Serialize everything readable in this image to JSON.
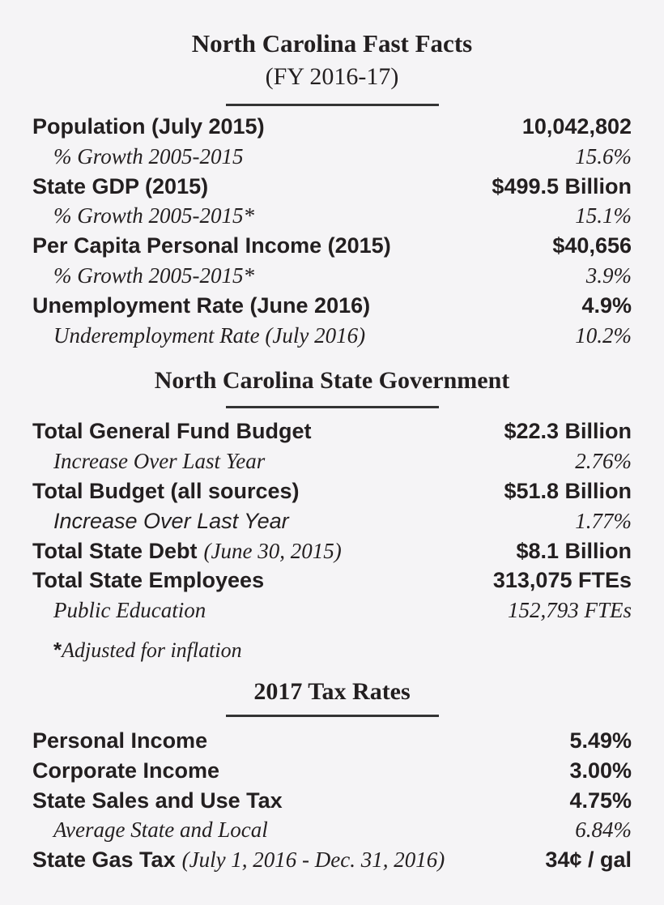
{
  "colors": {
    "background": "#f5f4f6",
    "text": "#231f20",
    "rule": "#343434"
  },
  "header": {
    "title": "North Carolina Fast Facts",
    "subtitle": "(FY 2016-17)"
  },
  "sections": [
    {
      "heading": "North Carolina Fast Facts",
      "rows": [
        {
          "label": "Population (July 2015)",
          "value": "10,042,802"
        },
        {
          "label": "% Growth 2005-2015",
          "value": "15.6%"
        },
        {
          "label": "State GDP (2015)",
          "value": "$499.5 Billion"
        },
        {
          "label": "% Growth 2005-2015*",
          "value": "15.1%"
        },
        {
          "label": "Per Capita Personal Income (2015)",
          "value": "$40,656"
        },
        {
          "label": "% Growth 2005-2015*",
          "value": "3.9%"
        },
        {
          "label": "Unemployment Rate (June 2016)",
          "value": "4.9%"
        },
        {
          "label": "Underemployment Rate (July 2016)",
          "value": "10.2%"
        }
      ]
    },
    {
      "heading": "North Carolina State Government",
      "rows": [
        {
          "label": "Total General Fund Budget",
          "value": "$22.3 Billion"
        },
        {
          "label": "Increase Over Last Year",
          "value": "2.76%"
        },
        {
          "label": "Total Budget (all sources)",
          "value": "$51.8 Billion"
        },
        {
          "label": "Increase Over Last Year",
          "value": "1.77%"
        },
        {
          "label": "Total State Debt",
          "label_note": "(June 30, 2015)",
          "value": "$8.1 Billion"
        },
        {
          "label": "Total State Employees",
          "value": "313,075 FTEs"
        },
        {
          "label": "Public Education",
          "value": "152,793 FTEs"
        }
      ]
    },
    {
      "heading": "2017 Tax Rates",
      "rows": [
        {
          "label": "Personal Income",
          "value": "5.49%"
        },
        {
          "label": "Corporate Income",
          "value": "3.00%"
        },
        {
          "label": "State Sales and Use Tax",
          "value": "4.75%"
        },
        {
          "label": "Average State and Local",
          "value": "6.84%"
        },
        {
          "label": "State Gas Tax",
          "label_note": "(July 1, 2016 - Dec. 31, 2016)",
          "value": "34¢ / gal"
        }
      ]
    }
  ],
  "footnote": {
    "marker": "*",
    "text": "Adjusted for inflation"
  }
}
